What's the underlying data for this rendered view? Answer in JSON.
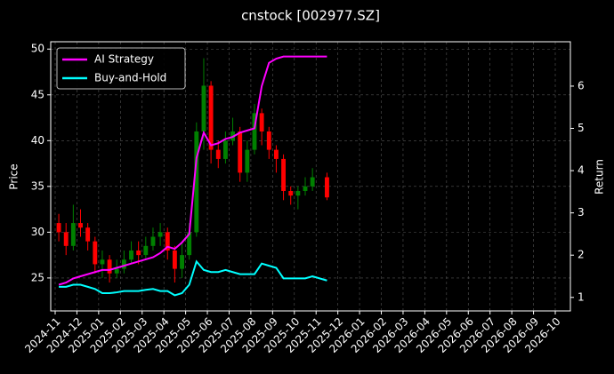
{
  "chart_data": {
    "type": "candlestick",
    "title": "cnstock [002977.SZ]",
    "ylabel": "Price",
    "y2label": "Return",
    "x": [
      "2024-11",
      "2024-11",
      "2024-11",
      "2024-12",
      "2024-12",
      "2024-12",
      "2025-01",
      "2025-01",
      "2025-01",
      "2025-02",
      "2025-02",
      "2025-02",
      "2025-03",
      "2025-03",
      "2025-03",
      "2025-04",
      "2025-04",
      "2025-04",
      "2025-05",
      "2025-05",
      "2025-05",
      "2025-06",
      "2025-06",
      "2025-06",
      "2025-07",
      "2025-07",
      "2025-07",
      "2025-08",
      "2025-08",
      "2025-08",
      "2025-09",
      "2025-09",
      "2025-09",
      "2025-10",
      "2025-10",
      "2025-10",
      "2025-11"
    ],
    "open": [
      31,
      30,
      28.5,
      31,
      30.5,
      29,
      26.5,
      27,
      25.5,
      26,
      27,
      28,
      27.5,
      28.5,
      29.5,
      30,
      28,
      26,
      27.5,
      30,
      41,
      46,
      39,
      38,
      40,
      41,
      36.5,
      39,
      43,
      41,
      39,
      38,
      34.5,
      34,
      34.5,
      35,
      36
    ],
    "high": [
      32,
      31,
      33,
      32.5,
      31,
      29.5,
      28,
      27.5,
      27,
      28,
      29,
      29,
      29.5,
      30.5,
      31,
      30.5,
      28.5,
      29,
      31,
      42,
      49,
      46.5,
      40,
      41,
      42.5,
      41.5,
      40,
      44,
      43.5,
      41.5,
      39.5,
      38.5,
      35,
      35,
      36,
      37,
      36.5
    ],
    "low": [
      29,
      27.5,
      28,
      29.5,
      28,
      25.5,
      25,
      24.5,
      25,
      25.5,
      26.5,
      26.5,
      27,
      28,
      28.5,
      27,
      24.5,
      25,
      27,
      29.5,
      39,
      37.5,
      37,
      37.5,
      39.5,
      35.5,
      35.5,
      38.5,
      39.5,
      38,
      36.5,
      33.5,
      33,
      32.5,
      34,
      34.5,
      33.5
    ],
    "close": [
      30,
      28.5,
      31,
      30.5,
      29,
      26.5,
      27,
      25.5,
      26,
      27,
      28,
      27.5,
      28.5,
      29.5,
      30,
      28,
      26,
      27.5,
      30,
      41,
      46,
      39,
      38,
      40,
      41,
      36.5,
      39,
      43,
      41,
      39,
      38,
      34.5,
      34,
      34.5,
      35,
      36,
      33.8
    ],
    "up_color": "#008000",
    "down_color": "#ff0000",
    "series": [
      {
        "name": "AI Strategy",
        "color": "#ff00ff",
        "axis": "y2",
        "values": [
          1.3,
          1.35,
          1.45,
          1.5,
          1.55,
          1.6,
          1.65,
          1.65,
          1.7,
          1.75,
          1.8,
          1.85,
          1.9,
          1.95,
          2.05,
          2.2,
          2.15,
          2.3,
          2.5,
          4.3,
          4.9,
          4.6,
          4.65,
          4.75,
          4.8,
          4.9,
          4.95,
          5.0,
          6.0,
          6.55,
          6.65,
          6.7,
          6.7,
          6.7,
          6.7,
          6.7,
          6.7
        ]
      },
      {
        "name": "Buy-and-Hold",
        "color": "#00ffff",
        "axis": "y2",
        "values": [
          1.25,
          1.25,
          1.3,
          1.3,
          1.25,
          1.2,
          1.1,
          1.1,
          1.12,
          1.15,
          1.15,
          1.15,
          1.18,
          1.2,
          1.15,
          1.15,
          1.05,
          1.1,
          1.3,
          1.85,
          1.65,
          1.6,
          1.6,
          1.65,
          1.6,
          1.55,
          1.55,
          1.55,
          1.8,
          1.75,
          1.7,
          1.45,
          1.45,
          1.45,
          1.45,
          1.5,
          1.4
        ]
      }
    ],
    "xlim": [
      "2024-11",
      "2026-10"
    ],
    "xticks": [
      "2024-11",
      "2024-12",
      "2025-01",
      "2025-02",
      "2025-03",
      "2025-04",
      "2025-05",
      "2025-06",
      "2025-07",
      "2025-08",
      "2025-09",
      "2025-10",
      "2025-11",
      "2025-12",
      "2026-01",
      "2026-02",
      "2026-03",
      "2026-04",
      "2026-05",
      "2026-06",
      "2026-07",
      "2026-08",
      "2026-09",
      "2026-10"
    ],
    "ylim": [
      21.4,
      50.8
    ],
    "yticks": [
      25,
      30,
      35,
      40,
      45,
      50
    ],
    "y2lim": [
      0.68,
      7.05
    ],
    "y2ticks": [
      1,
      2,
      3,
      4,
      5,
      6
    ],
    "grid": true,
    "legend": "upper left"
  }
}
